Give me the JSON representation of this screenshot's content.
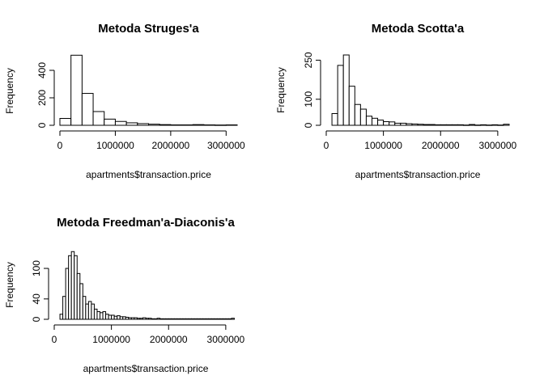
{
  "chart_data": [
    {
      "type": "bar",
      "title": "Metoda Struges'a",
      "xlabel": "apartments$transaction.price",
      "ylabel": "Frequency",
      "xlim": [
        0,
        3200000
      ],
      "ylim": [
        0,
        500
      ],
      "xticks": [
        0,
        1000000,
        2000000,
        3000000
      ],
      "xtick_labels": [
        "0",
        "1000000",
        "2000000",
        "3000000"
      ],
      "yticks": [
        0,
        200,
        400
      ],
      "ytick_labels": [
        "0",
        "200",
        "400"
      ],
      "bin_edges": [
        0,
        200000,
        400000,
        600000,
        800000,
        1000000,
        1200000,
        1400000,
        1600000,
        1800000,
        2000000,
        2200000,
        2400000,
        2600000,
        2800000,
        3000000,
        3200000
      ],
      "values": [
        50,
        510,
        232,
        100,
        45,
        28,
        18,
        12,
        8,
        5,
        3,
        3,
        5,
        3,
        2,
        3
      ]
    },
    {
      "type": "bar",
      "title": "Metoda Scotta'a",
      "xlabel": "apartments$transaction.price",
      "ylabel": "Frequency",
      "xlim": [
        0,
        3200000
      ],
      "ylim": [
        0,
        270
      ],
      "xticks": [
        0,
        1000000,
        2000000,
        3000000
      ],
      "xtick_labels": [
        "0",
        "1000000",
        "2000000",
        "3000000"
      ],
      "yticks": [
        0,
        100,
        250
      ],
      "ytick_labels": [
        "0",
        "100",
        "250"
      ],
      "bin_edges": [
        100000,
        200000,
        300000,
        400000,
        500000,
        600000,
        700000,
        800000,
        900000,
        1000000,
        1100000,
        1200000,
        1300000,
        1400000,
        1500000,
        1600000,
        1700000,
        1800000,
        1900000,
        2000000,
        2100000,
        2200000,
        2300000,
        2400000,
        2500000,
        2600000,
        2700000,
        2800000,
        2900000,
        3000000,
        3100000,
        3200000
      ],
      "values": [
        45,
        230,
        270,
        150,
        80,
        62,
        35,
        27,
        20,
        14,
        13,
        8,
        8,
        6,
        5,
        4,
        3,
        3,
        2,
        2,
        2,
        2,
        2,
        1,
        3,
        1,
        2,
        1,
        2,
        1,
        4
      ]
    },
    {
      "type": "bar",
      "title": "Metoda Freedman'a-Diaconis'a",
      "xlabel": "apartments$transaction.price",
      "ylabel": "Frequency",
      "xlim": [
        0,
        3200000
      ],
      "ylim": [
        0,
        135
      ],
      "xticks": [
        0,
        1000000,
        2000000,
        3000000
      ],
      "xtick_labels": [
        "0",
        "1000000",
        "2000000",
        "3000000"
      ],
      "yticks": [
        0,
        40,
        100
      ],
      "ytick_labels": [
        "0",
        "40",
        "100"
      ],
      "bin_edges": [
        100000,
        150000,
        200000,
        250000,
        300000,
        350000,
        400000,
        450000,
        500000,
        550000,
        600000,
        650000,
        700000,
        750000,
        800000,
        850000,
        900000,
        950000,
        1000000,
        1050000,
        1100000,
        1150000,
        1200000,
        1250000,
        1300000,
        1350000,
        1400000,
        1450000,
        1500000,
        1550000,
        1600000,
        1650000,
        1700000,
        1750000,
        1800000,
        1850000,
        1900000,
        1950000,
        2000000,
        2050000,
        2100000,
        2150000,
        2200000,
        2250000,
        2300000,
        2350000,
        2400000,
        2450000,
        2500000,
        2550000,
        2600000,
        2650000,
        2700000,
        2750000,
        2800000,
        2850000,
        2900000,
        2950000,
        3000000,
        3050000,
        3100000,
        3150000
      ],
      "values": [
        10,
        45,
        100,
        125,
        133,
        125,
        90,
        70,
        45,
        30,
        35,
        30,
        20,
        15,
        13,
        15,
        10,
        8,
        8,
        6,
        7,
        5,
        5,
        4,
        3,
        3,
        3,
        2,
        2,
        3,
        2,
        2,
        1,
        1,
        2,
        1,
        1,
        1,
        1,
        1,
        1,
        1,
        1,
        1,
        1,
        1,
        1,
        1,
        1,
        1,
        1,
        1,
        1,
        1,
        1,
        1,
        1,
        1,
        1,
        1,
        2
      ]
    }
  ]
}
